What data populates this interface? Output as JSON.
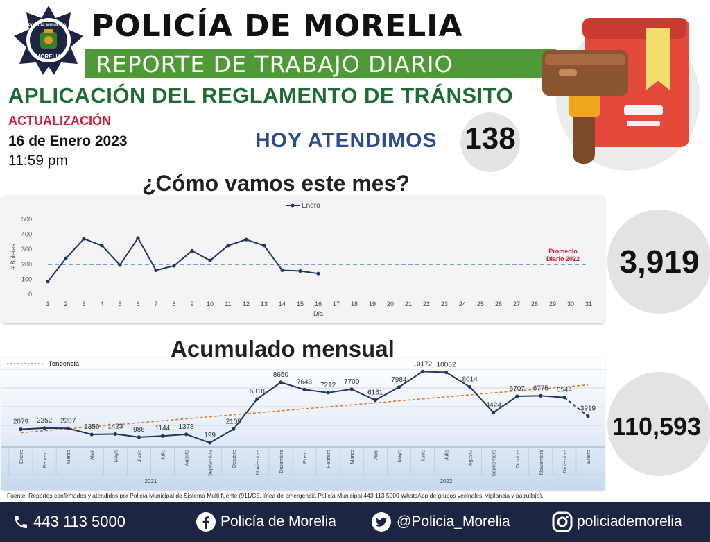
{
  "header": {
    "badge_top": "POLICÍA MUNICIPAL",
    "badge_bottom": "MORELIA",
    "title": "POLICÍA DE MORELIA",
    "subtitle": "REPORTE DE TRABAJO DIARIO",
    "section_title": "APLICACIÓN DEL REGLAMENTO DE TRÁNSITO",
    "update_label": "ACTUALIZACIÓN",
    "date": "16 de Enero 2023",
    "time": "11:59 pm",
    "today_label": "HOY ATENDIMOS",
    "today_value": "138"
  },
  "icons": [
    "police-badge-icon",
    "gavel-icon",
    "book-icon",
    "phone-icon",
    "facebook-icon",
    "twitter-icon",
    "instagram-icon"
  ],
  "colors": {
    "green": "#4e9a36",
    "dark_green": "#1e6b33",
    "red": "#d41b3a",
    "blue": "#2c4c8c",
    "navy": "#1c2541",
    "line": "#1f3566",
    "trend": "#e07b2a"
  },
  "month_section": {
    "title": "¿Cómo vamos este mes?",
    "right_value": "3,919"
  },
  "accum_section": {
    "title": "Acumulado mensual",
    "right_value": "110,593"
  },
  "source_text": "Fuente: Reportes confirmados y atendidos por Policía Municipal de Sistema Multi fuente (911/C5, línea de emergencia Policía Municipal 443 113 5000 WhatsApp de grupos vecinales, vigilancia y patrullaje).",
  "footer": {
    "phone": "443 113 5000",
    "facebook": "Policía de Morelia",
    "twitter": "@Policia_Morelia",
    "instagram": "policiademorelia"
  },
  "chart_data": [
    {
      "type": "line",
      "legend": "Enero",
      "legend_position": "top",
      "xlabel": "Día",
      "ylabel": "# Boletas",
      "ylim": [
        0,
        500
      ],
      "yticks": [
        0,
        100,
        200,
        300,
        400,
        500
      ],
      "x": [
        1,
        2,
        3,
        4,
        5,
        6,
        7,
        8,
        9,
        10,
        11,
        12,
        13,
        14,
        15,
        16,
        17,
        18,
        19,
        20,
        21,
        22,
        23,
        24,
        25,
        26,
        27,
        28,
        29,
        30,
        31
      ],
      "series": [
        {
          "name": "Enero",
          "x": [
            1,
            2,
            3,
            4,
            5,
            6,
            7,
            8,
            9,
            10,
            11,
            12,
            13,
            14,
            15,
            16
          ],
          "values": [
            85,
            240,
            370,
            325,
            195,
            375,
            160,
            190,
            290,
            225,
            325,
            365,
            325,
            160,
            155,
            138
          ]
        }
      ],
      "reference_line": {
        "label_1": "Promedio",
        "label_2": "Diario 2022",
        "value": 200
      },
      "grid": false
    },
    {
      "type": "line",
      "legend": "Tendencia",
      "legend_position": "top-left",
      "categories": [
        "Enero",
        "Febrero",
        "Marzo",
        "Abril",
        "Mayo",
        "Junio",
        "Julio",
        "Agosto",
        "Septiembre",
        "Octubre",
        "Noviembre",
        "Diciembre",
        "Enero",
        "Febrero",
        "Marzo",
        "Abril",
        "Mayo",
        "Junio",
        "Julio",
        "Agosto",
        "Septiembre",
        "Octubre",
        "Noviembre",
        "Diciembre",
        "Enero"
      ],
      "year_groups": [
        {
          "label": "2021",
          "start": 0,
          "end": 11
        },
        {
          "label": "2022",
          "start": 12,
          "end": 24
        }
      ],
      "values": [
        2079,
        2252,
        2207,
        1356,
        1423,
        986,
        1144,
        1378,
        199,
        2109,
        6318,
        8650,
        7643,
        7212,
        7700,
        6161,
        7984,
        10172,
        10062,
        8014,
        4424,
        6707,
        6775,
        6544,
        3919
      ],
      "labels": [
        "2079",
        "2252",
        "2207",
        "1356",
        "1423",
        "986",
        "1144",
        "1378",
        "199",
        "2109",
        "6318",
        "8650",
        "7643",
        "7212",
        "7700",
        "6161",
        "7984",
        "10172",
        "10062",
        "8014",
        "4424",
        "6707",
        "6775",
        "6544",
        "3919"
      ],
      "ylim": [
        0,
        10500
      ],
      "trend": {
        "start": 1600,
        "end": 8300
      },
      "grid": true
    }
  ]
}
